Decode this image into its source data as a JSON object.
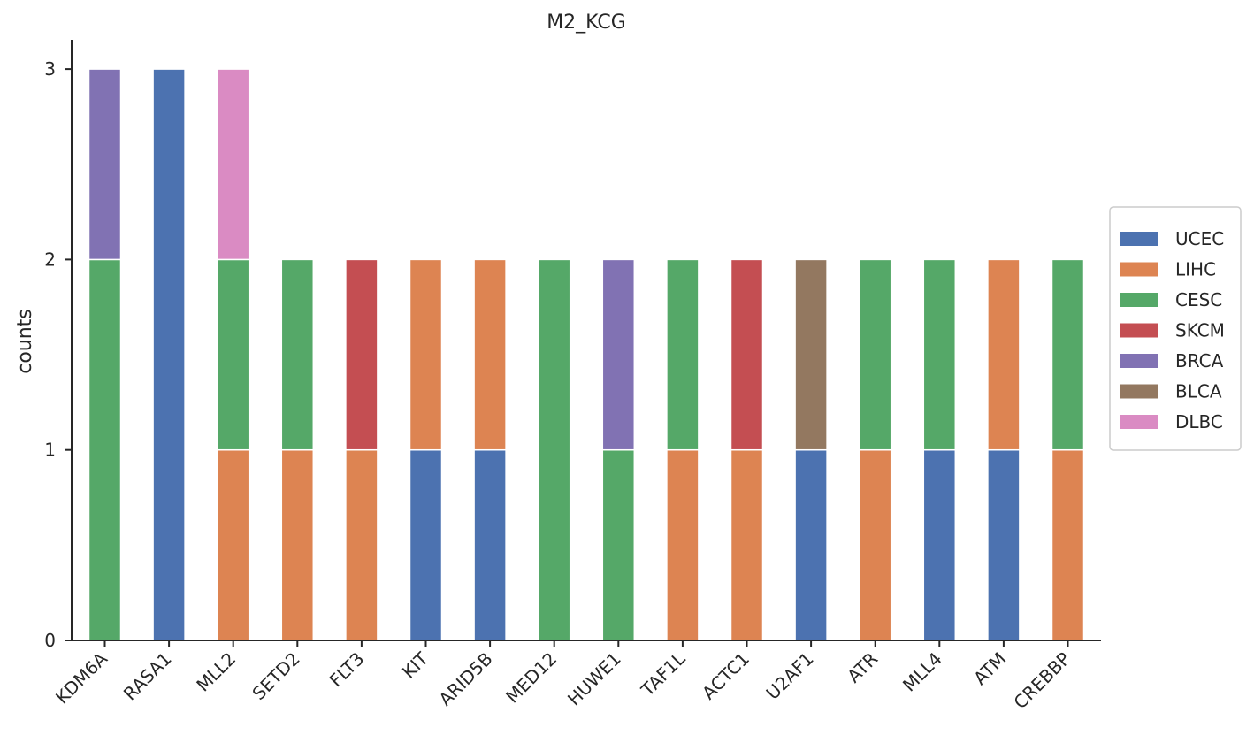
{
  "chart_data": {
    "type": "bar",
    "stacked": true,
    "title": "M2_KCG",
    "xlabel": "",
    "ylabel": "counts",
    "ylim": [
      0,
      3.17
    ],
    "yticks": [
      "0",
      "1",
      "2",
      "3"
    ],
    "grid": false,
    "legend_position": "right",
    "categories": [
      "KDM6A",
      "RASA1",
      "MLL2",
      "SETD2",
      "FLT3",
      "KIT",
      "ARID5B",
      "MED12",
      "HUWE1",
      "TAF1L",
      "ACTC1",
      "U2AF1",
      "ATR",
      "MLL4",
      "ATM",
      "CREBBP"
    ],
    "series": [
      {
        "name": "UCEC",
        "color": "#4c72b0",
        "values": [
          0,
          3,
          0,
          0,
          0,
          1,
          1,
          0,
          0,
          0,
          0,
          1,
          0,
          1,
          1,
          0
        ]
      },
      {
        "name": "LIHC",
        "color": "#dd8452",
        "values": [
          0,
          0,
          1,
          1,
          1,
          1,
          1,
          0,
          0,
          1,
          1,
          0,
          1,
          0,
          1,
          1
        ]
      },
      {
        "name": "CESC",
        "color": "#55a868",
        "values": [
          2,
          0,
          1,
          1,
          0,
          0,
          0,
          2,
          1,
          1,
          0,
          0,
          1,
          1,
          0,
          1
        ]
      },
      {
        "name": "SKCM",
        "color": "#c44e52",
        "values": [
          0,
          0,
          0,
          0,
          1,
          0,
          0,
          0,
          0,
          0,
          1,
          0,
          0,
          0,
          0,
          0
        ]
      },
      {
        "name": "BRCA",
        "color": "#8172b3",
        "values": [
          1,
          0,
          0,
          0,
          0,
          0,
          0,
          0,
          1,
          0,
          0,
          0,
          0,
          0,
          0,
          0
        ]
      },
      {
        "name": "BLCA",
        "color": "#937860",
        "values": [
          0,
          0,
          0,
          0,
          0,
          0,
          0,
          0,
          0,
          0,
          0,
          1,
          0,
          0,
          0,
          0
        ]
      },
      {
        "name": "DLBC",
        "color": "#da8bc3",
        "values": [
          0,
          0,
          1,
          0,
          0,
          0,
          0,
          0,
          0,
          0,
          0,
          0,
          0,
          0,
          0,
          0
        ]
      }
    ]
  }
}
